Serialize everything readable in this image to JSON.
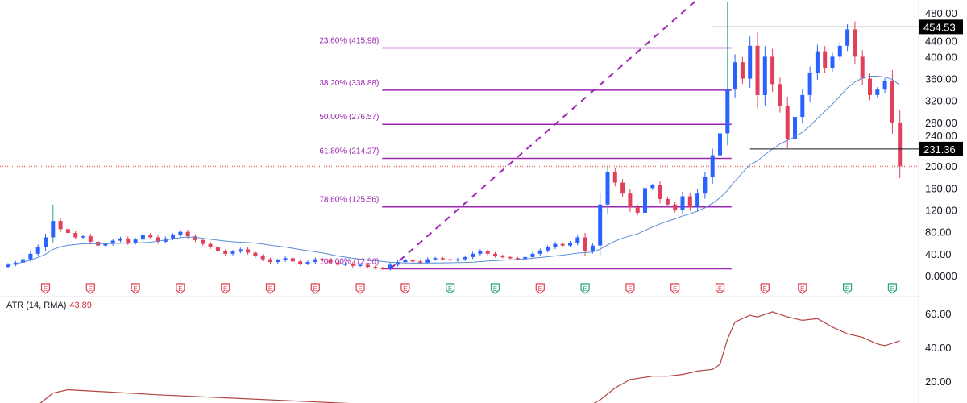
{
  "chart_data": {
    "type": "candlestick",
    "price_axis": {
      "ticks": [
        "480.00",
        "440.00",
        "400.00",
        "360.00",
        "320.00",
        "280.00",
        "240.00",
        "200.00",
        "160.00",
        "120.00",
        "80.00",
        "40.00",
        "0.0000"
      ],
      "tick_values": [
        480,
        440,
        400,
        360,
        320,
        280,
        240,
        200,
        160,
        120,
        80,
        40,
        0
      ],
      "range": [
        0,
        480
      ]
    },
    "closes": [
      20,
      24,
      30,
      40,
      52,
      70,
      100,
      85,
      78,
      70,
      72,
      62,
      55,
      58,
      64,
      68,
      60,
      66,
      75,
      70,
      62,
      68,
      74,
      80,
      72,
      65,
      58,
      52,
      45,
      40,
      44,
      48,
      42,
      36,
      30,
      25,
      28,
      32,
      26,
      22,
      25,
      30,
      28,
      24,
      20,
      22,
      18,
      20,
      16,
      14,
      13,
      20,
      25,
      28,
      26,
      24,
      30,
      32,
      30,
      28,
      30,
      34,
      40,
      45,
      40,
      36,
      34,
      32,
      30,
      34,
      40,
      46,
      52,
      58,
      55,
      60,
      70,
      45,
      55,
      130,
      190,
      170,
      150,
      125,
      115,
      160,
      165,
      140,
      130,
      120,
      145,
      125,
      150,
      180,
      220,
      260,
      340,
      390,
      360,
      420,
      330,
      400,
      350,
      310,
      250,
      290,
      330,
      370,
      410,
      380,
      400,
      420,
      450,
      400,
      360,
      330,
      340,
      355,
      280,
      200
    ],
    "first_open": 16,
    "big_wicks": [
      {
        "index": 6,
        "high": 130
      },
      {
        "index": 80,
        "high": 200
      },
      {
        "index": 96,
        "high": 500
      }
    ],
    "fibonacci": {
      "levels": [
        {
          "label": "23.60% (415.98)",
          "value": 415.98
        },
        {
          "label": "38.20% (338.88)",
          "value": 338.88
        },
        {
          "label": "50.00% (276.57)",
          "value": 276.57
        },
        {
          "label": "61.80% (214.27)",
          "value": 214.27
        },
        {
          "label": "78.60% (125.56)",
          "value": 125.56
        },
        {
          "label": "100.00% (12.56)",
          "value": 12.56
        }
      ],
      "start_index": 51,
      "end_index": 96,
      "color": "#9c27b0"
    },
    "trend_line": {
      "from": {
        "index": 51,
        "value": 12.56
      },
      "to": {
        "index": 92,
        "value": 505
      }
    },
    "horizontal_lines": [
      {
        "label": "454.53",
        "value": 454.53,
        "from_index": 94
      },
      {
        "label": "231.36",
        "value": 231.36,
        "from_index": 99
      }
    ],
    "current_price_line": 200,
    "moving_average": {
      "period": 20,
      "color": "#5b8bd6"
    },
    "earnings_markers": [
      {
        "index": 5,
        "type": "E",
        "color": "#e04050"
      },
      {
        "index": 11,
        "type": "E",
        "color": "#e04050"
      },
      {
        "index": 17,
        "type": "E",
        "color": "#e04050"
      },
      {
        "index": 23,
        "type": "E",
        "color": "#e04050"
      },
      {
        "index": 29,
        "type": "E",
        "color": "#e04050"
      },
      {
        "index": 35,
        "type": "E",
        "color": "#e04050"
      },
      {
        "index": 41,
        "type": "E",
        "color": "#e04050"
      },
      {
        "index": 47,
        "type": "E",
        "color": "#e04050"
      },
      {
        "index": 53,
        "type": "E",
        "color": "#e04050"
      },
      {
        "index": 59,
        "type": "E",
        "color": "#26a17b"
      },
      {
        "index": 65,
        "type": "E",
        "color": "#26a17b"
      },
      {
        "index": 71,
        "type": "E",
        "color": "#e04050"
      },
      {
        "index": 77,
        "type": "E",
        "color": "#26a17b"
      },
      {
        "index": 83,
        "type": "E",
        "color": "#e04050"
      },
      {
        "index": 89,
        "type": "E",
        "color": "#e04050"
      },
      {
        "index": 95,
        "type": "E",
        "color": "#e04050"
      },
      {
        "index": 101,
        "type": "E",
        "color": "#e04050"
      },
      {
        "index": 106,
        "type": "E",
        "color": "#e04050"
      },
      {
        "index": 112,
        "type": "E",
        "color": "#26a17b"
      },
      {
        "index": 118,
        "type": "E",
        "color": "#26a17b"
      }
    ],
    "colors": {
      "up": "#2962ff",
      "down": "#e0405a",
      "up_alt": "#26a69a"
    },
    "atr": {
      "legend": "ATR (14, RMA)",
      "current": "43.89",
      "color": "#b2453f",
      "ticks": [
        "60.00",
        "40.00",
        "20.00"
      ],
      "tick_values": [
        60,
        40,
        20
      ],
      "points": [
        [
          4,
          6
        ],
        [
          6,
          13
        ],
        [
          8,
          15
        ],
        [
          12,
          14
        ],
        [
          20,
          12
        ],
        [
          30,
          10
        ],
        [
          40,
          8
        ],
        [
          50,
          6
        ],
        [
          60,
          5
        ],
        [
          70,
          4
        ],
        [
          77,
          4
        ],
        [
          79,
          9
        ],
        [
          81,
          16
        ],
        [
          83,
          21
        ],
        [
          86,
          23
        ],
        [
          88,
          23
        ],
        [
          90,
          24
        ],
        [
          92,
          26
        ],
        [
          94,
          27
        ],
        [
          95,
          30
        ],
        [
          96,
          45
        ],
        [
          97,
          55
        ],
        [
          99,
          59
        ],
        [
          100,
          58
        ],
        [
          102,
          61
        ],
        [
          104,
          58
        ],
        [
          106,
          56
        ],
        [
          108,
          57
        ],
        [
          110,
          52
        ],
        [
          112,
          48
        ],
        [
          114,
          46
        ],
        [
          116,
          42
        ],
        [
          117,
          41
        ],
        [
          119,
          43.89
        ]
      ]
    }
  }
}
